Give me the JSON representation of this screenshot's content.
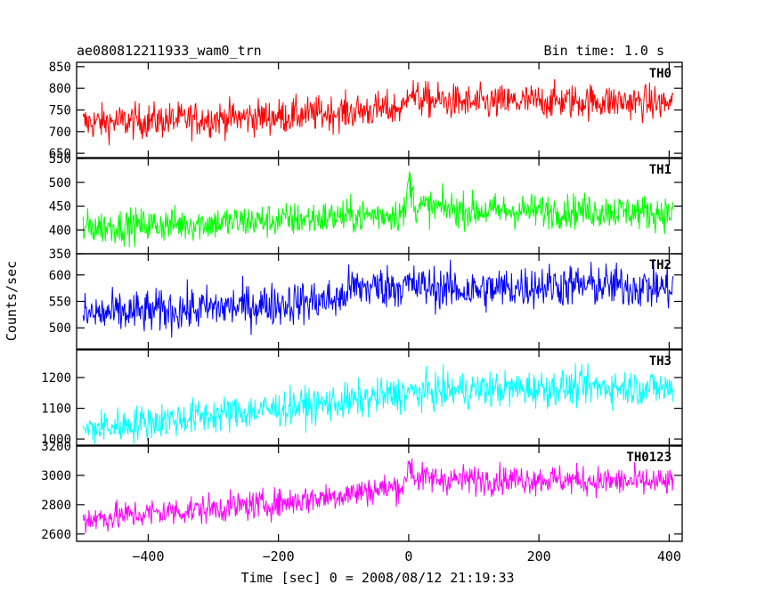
{
  "header": {
    "title": "ae080812211933_wam0_trn",
    "bin_time": "Bin time: 1.0 s"
  },
  "chart_data": {
    "type": "line",
    "xlabel": "Time [sec] 0 = 2008/08/12 21:19:33",
    "ylabel": "Counts/sec",
    "xlim": [
      -510,
      420
    ],
    "x_ticks": [
      -400,
      -200,
      0,
      200,
      400
    ],
    "x_tick_labels": [
      "−400",
      "−200",
      "0",
      "200",
      "400"
    ],
    "x_range_of_data": [
      -500,
      406
    ],
    "bin_time_s": 1.0,
    "grid": false,
    "panels": [
      {
        "name": "TH0",
        "color": "#ff0000",
        "ylim": [
          640,
          860
        ],
        "y_ticks": [
          700,
          750,
          800,
          850
        ],
        "y_tick_labels": [
          "700",
          "750",
          "800",
          "850"
        ],
        "y_ticks_labeled_extra": [
          {
            "value": 650,
            "label": "650"
          }
        ],
        "trend": [
          {
            "x": -500,
            "y": 720
          },
          {
            "x": -400,
            "y": 725
          },
          {
            "x": -200,
            "y": 735
          },
          {
            "x": -100,
            "y": 745
          },
          {
            "x": -5,
            "y": 755
          },
          {
            "x": 0,
            "y": 810
          },
          {
            "x": 10,
            "y": 775
          },
          {
            "x": 100,
            "y": 765
          },
          {
            "x": 200,
            "y": 770
          },
          {
            "x": 300,
            "y": 770
          },
          {
            "x": 406,
            "y": 765
          }
        ],
        "noise_amplitude": 45
      },
      {
        "name": "TH1",
        "color": "#00ff00",
        "ylim": [
          350,
          550
        ],
        "y_ticks": [
          350,
          400,
          450,
          500,
          550
        ],
        "y_tick_labels": [
          "350",
          "400",
          "450",
          "500",
          "550"
        ],
        "trend": [
          {
            "x": -500,
            "y": 405
          },
          {
            "x": -400,
            "y": 410
          },
          {
            "x": -200,
            "y": 420
          },
          {
            "x": -100,
            "y": 428
          },
          {
            "x": -5,
            "y": 435
          },
          {
            "x": 0,
            "y": 510
          },
          {
            "x": 10,
            "y": 450
          },
          {
            "x": 100,
            "y": 440
          },
          {
            "x": 200,
            "y": 440
          },
          {
            "x": 300,
            "y": 440
          },
          {
            "x": 406,
            "y": 435
          }
        ],
        "noise_amplitude": 40
      },
      {
        "name": "TH2",
        "color": "#0000ff",
        "ylim": [
          460,
          640
        ],
        "y_ticks": [
          500,
          550,
          600
        ],
        "y_tick_labels": [
          "500",
          "550",
          "600"
        ],
        "trend": [
          {
            "x": -500,
            "y": 525
          },
          {
            "x": -400,
            "y": 530
          },
          {
            "x": -200,
            "y": 545
          },
          {
            "x": -100,
            "y": 555
          },
          {
            "x": -95,
            "y": 575
          },
          {
            "x": 0,
            "y": 580
          },
          {
            "x": 100,
            "y": 570
          },
          {
            "x": 200,
            "y": 580
          },
          {
            "x": 300,
            "y": 580
          },
          {
            "x": 406,
            "y": 575
          }
        ],
        "noise_amplitude": 45
      },
      {
        "name": "TH3",
        "color": "#00ffff",
        "ylim": [
          980,
          1290
        ],
        "y_ticks": [
          1000,
          1100,
          1200
        ],
        "y_tick_labels": [
          "1000",
          "1100",
          "1200"
        ],
        "trend": [
          {
            "x": -500,
            "y": 1030
          },
          {
            "x": -400,
            "y": 1055
          },
          {
            "x": -200,
            "y": 1100
          },
          {
            "x": -100,
            "y": 1120
          },
          {
            "x": 0,
            "y": 1150
          },
          {
            "x": 100,
            "y": 1160
          },
          {
            "x": 200,
            "y": 1165
          },
          {
            "x": 300,
            "y": 1170
          },
          {
            "x": 406,
            "y": 1165
          }
        ],
        "noise_amplitude": 65
      },
      {
        "name": "TH0123",
        "color": "#ff00ff",
        "ylim": [
          2550,
          3200
        ],
        "y_ticks": [
          2600,
          2800,
          3000,
          3200
        ],
        "y_tick_labels": [
          "2600",
          "2800",
          "3000",
          "3200"
        ],
        "trend": [
          {
            "x": -500,
            "y": 2700
          },
          {
            "x": -400,
            "y": 2740
          },
          {
            "x": -200,
            "y": 2810
          },
          {
            "x": -100,
            "y": 2870
          },
          {
            "x": -5,
            "y": 2930
          },
          {
            "x": 0,
            "y": 3100
          },
          {
            "x": 10,
            "y": 2980
          },
          {
            "x": 100,
            "y": 2970
          },
          {
            "x": 200,
            "y": 2975
          },
          {
            "x": 300,
            "y": 2960
          },
          {
            "x": 406,
            "y": 2950
          }
        ],
        "noise_amplitude": 110
      }
    ]
  }
}
